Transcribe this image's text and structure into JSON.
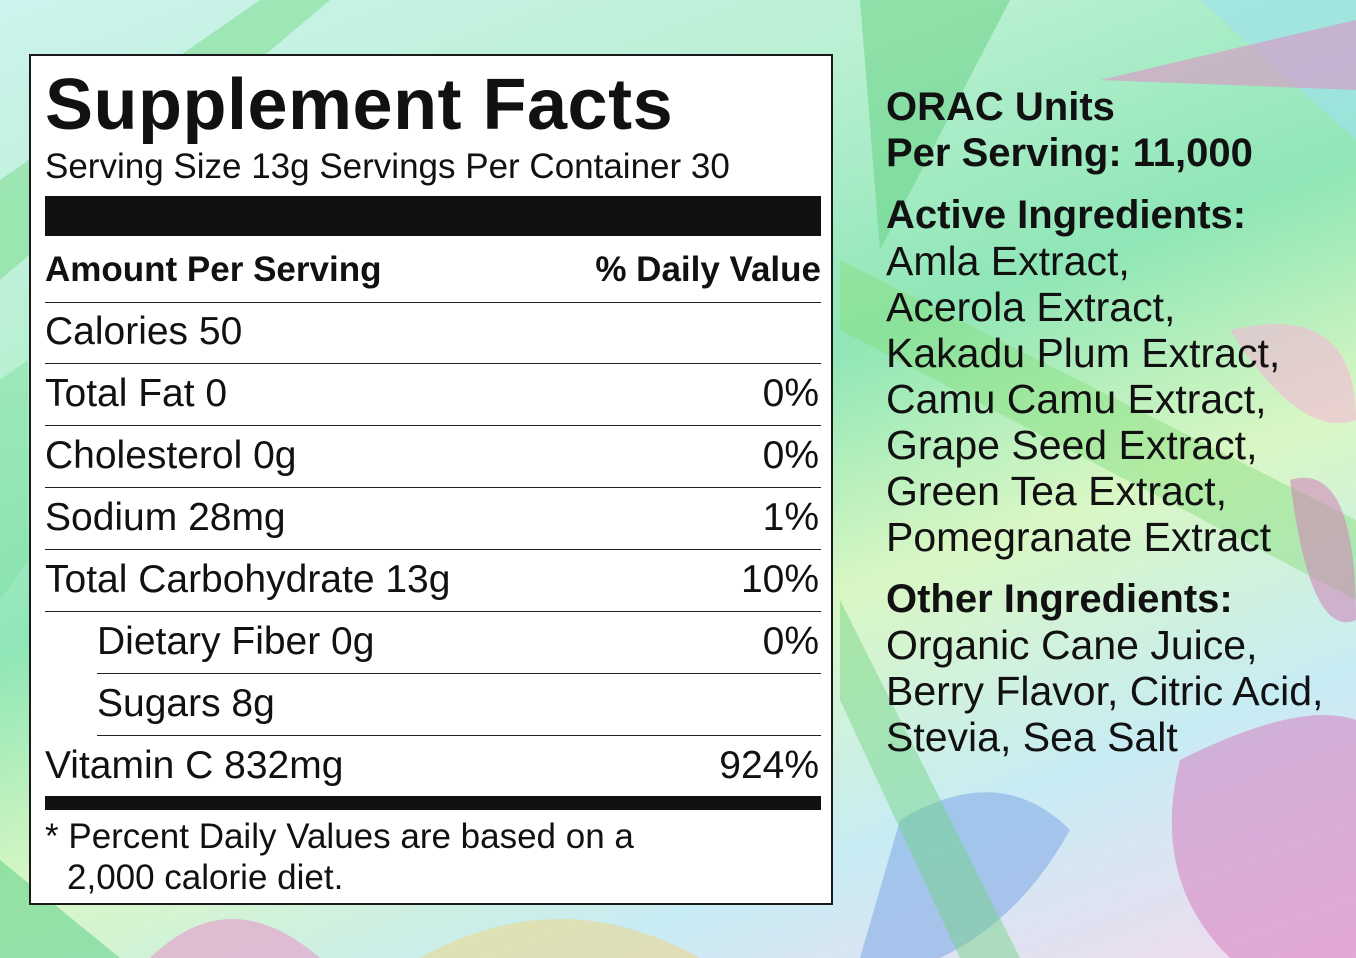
{
  "facts": {
    "title": "Supplement Facts",
    "serving_line": "Serving Size 13g  Servings Per Container 30",
    "header_left": "Amount Per Serving",
    "header_right": "% Daily Value",
    "rows": [
      {
        "name": "Calories 50",
        "value": ""
      },
      {
        "name": "Total Fat 0",
        "value": "0%"
      },
      {
        "name": "Cholesterol 0g",
        "value": "0%"
      },
      {
        "name": "Sodium 28mg",
        "value": "1%"
      },
      {
        "name": "Total Carbohydrate 13g",
        "value": "10%"
      },
      {
        "name": "Dietary Fiber 0g",
        "value": "0%"
      },
      {
        "name": "Sugars 8g",
        "value": ""
      },
      {
        "name": "Vitamin C 832mg",
        "value": "924%"
      }
    ],
    "footnote_line1": "* Percent Daily Values are based on a",
    "footnote_line2": "2,000 calorie diet."
  },
  "side": {
    "orac_line1": "ORAC Units",
    "orac_line2": "Per Serving: 11,000",
    "active_heading": "Active Ingredients:",
    "active_lines": [
      "Amla Extract,",
      "Acerola Extract,",
      "Kakadu Plum Extract,",
      "Camu Camu Extract,",
      "Grape Seed Extract,",
      "Green Tea Extract,",
      "Pomegranate Extract"
    ],
    "other_heading": "Other Ingredients:",
    "other_lines": [
      "Organic Cane Juice,",
      "Berry Flavor, Citric Acid,",
      "Stevia, Sea Salt"
    ]
  },
  "colors": {
    "label_background": "#ffffff",
    "text": "#111111",
    "leaf_green": "#6fd37e",
    "leaf_pink": "#e79ac9",
    "leaf_blue": "#7fb4e6"
  }
}
